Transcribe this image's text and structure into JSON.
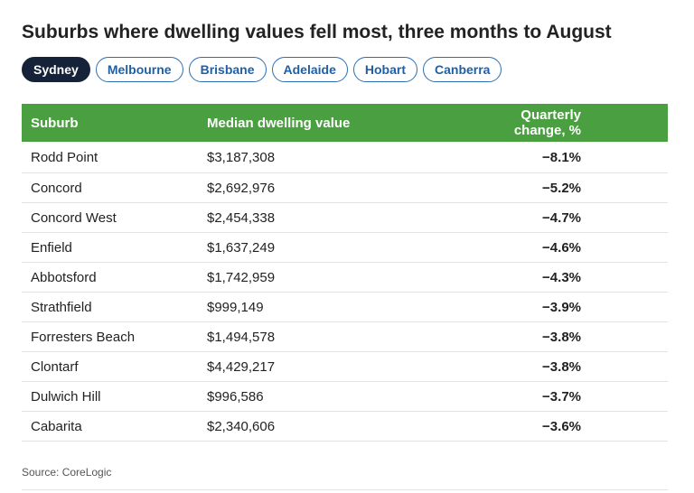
{
  "title": "Suburbs where dwelling values fell most, three months to August",
  "tabs": [
    {
      "label": "Sydney",
      "active": true
    },
    {
      "label": "Melbourne",
      "active": false
    },
    {
      "label": "Brisbane",
      "active": false
    },
    {
      "label": "Adelaide",
      "active": false
    },
    {
      "label": "Hobart",
      "active": false
    },
    {
      "label": "Canberra",
      "active": false
    }
  ],
  "table": {
    "headers": [
      "Suburb",
      "Median dwelling value",
      "Quarterly change, %"
    ],
    "rows": [
      [
        "Rodd Point",
        "$3,187,308",
        "−8.1%"
      ],
      [
        "Concord",
        "$2,692,976",
        "−5.2%"
      ],
      [
        "Concord West",
        "$2,454,338",
        "−4.7%"
      ],
      [
        "Enfield",
        "$1,637,249",
        "−4.6%"
      ],
      [
        "Abbotsford",
        "$1,742,959",
        "−4.3%"
      ],
      [
        "Strathfield",
        "$999,149",
        "−3.9%"
      ],
      [
        "Forresters Beach",
        "$1,494,578",
        "−3.8%"
      ],
      [
        "Clontarf",
        "$4,429,217",
        "−3.8%"
      ],
      [
        "Dulwich Hill",
        "$996,586",
        "−3.7%"
      ],
      [
        "Cabarita",
        "$2,340,606",
        "−3.6%"
      ]
    ]
  },
  "source": "Source: CoreLogic",
  "colors": {
    "header_bg": "#4aa040",
    "active_tab_bg": "#152238",
    "tab_border": "#2a6fb5"
  }
}
